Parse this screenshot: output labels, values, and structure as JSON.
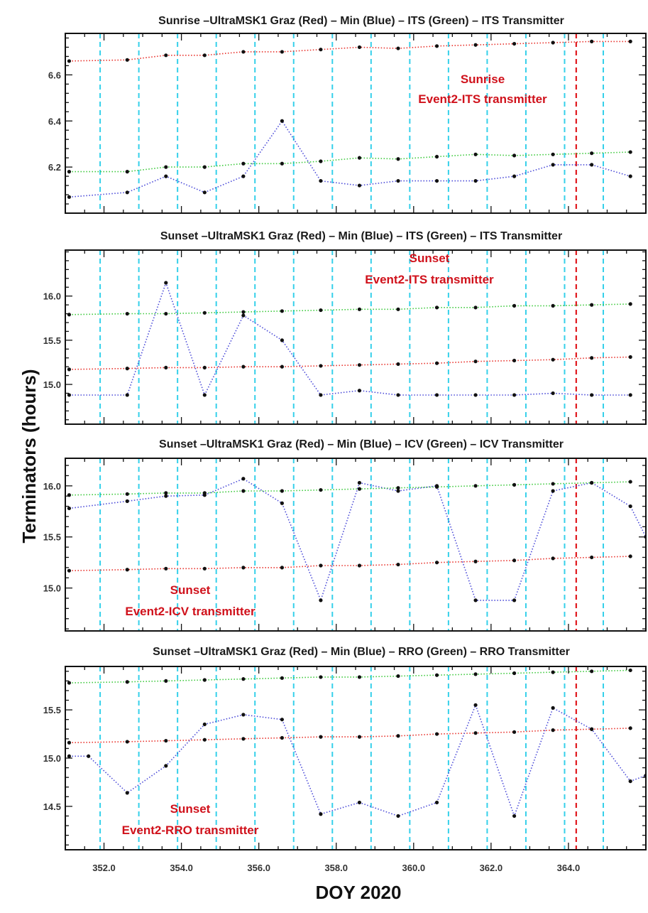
{
  "figure": {
    "ylabel": "Terminators (hours)",
    "xlabel": "DOY 2020"
  },
  "chart_data": [
    {
      "type": "line",
      "title": "Sunrise –UltraMSK1 Graz (Red) – Min (Blue) – ITS (Green) – ITS Transmitter",
      "xlim": [
        351.0,
        366.0
      ],
      "ylim": [
        6.0,
        6.78
      ],
      "xticks": [
        "352.0",
        "354.0",
        "356.0",
        "358.0",
        "360.0",
        "362.0",
        "364.0"
      ],
      "yticks": [
        "6.2",
        "6.4",
        "6.6"
      ],
      "cyan_lines": [
        351.9,
        352.9,
        353.9,
        354.9,
        355.9,
        356.9,
        357.9,
        358.9,
        359.9,
        360.9,
        361.9,
        362.9,
        363.9,
        364.9
      ],
      "red_line": 364.2,
      "annotation": [
        "Sunrise",
        "Event2-ITS transmitter"
      ],
      "annotation_pos": "upper-right",
      "series": [
        {
          "color": "#e8302a",
          "x": [
            351.1,
            352.6,
            353.6,
            354.6,
            355.6,
            356.6,
            357.6,
            358.6,
            359.6,
            360.6,
            361.6,
            362.6,
            363.6,
            364.6,
            365.6
          ],
          "y": [
            6.66,
            6.665,
            6.685,
            6.685,
            6.7,
            6.7,
            6.71,
            6.72,
            6.715,
            6.725,
            6.73,
            6.735,
            6.74,
            6.745,
            6.745
          ]
        },
        {
          "color": "#4a4ad8",
          "x": [
            351.1,
            352.6,
            353.6,
            354.6,
            355.6,
            356.6,
            357.6,
            358.6,
            359.6,
            360.6,
            361.6,
            362.6,
            363.6,
            364.6,
            365.6
          ],
          "y": [
            6.07,
            6.09,
            6.16,
            6.09,
            6.16,
            6.4,
            6.14,
            6.12,
            6.14,
            6.14,
            6.14,
            6.16,
            6.21,
            6.21,
            6.16
          ]
        },
        {
          "color": "#3cc93c",
          "x": [
            351.1,
            352.6,
            353.6,
            354.6,
            355.6,
            356.6,
            357.6,
            358.6,
            359.6,
            360.6,
            361.6,
            362.6,
            363.6,
            364.6,
            365.6
          ],
          "y": [
            6.18,
            6.18,
            6.2,
            6.2,
            6.215,
            6.215,
            6.225,
            6.24,
            6.235,
            6.245,
            6.255,
            6.25,
            6.255,
            6.26,
            6.265
          ]
        }
      ]
    },
    {
      "type": "line",
      "title": "Sunset –UltraMSK1 Graz (Red) – Min (Blue) – ITS (Green) – ITS Transmitter",
      "xlim": [
        351.0,
        366.0
      ],
      "ylim": [
        14.55,
        16.52
      ],
      "xticks": [
        "352.0",
        "354.0",
        "356.0",
        "358.0",
        "360.0",
        "362.0",
        "364.0"
      ],
      "yticks": [
        "15.0",
        "15.5",
        "16.0"
      ],
      "cyan_lines": [
        351.9,
        352.9,
        353.9,
        354.9,
        355.9,
        356.9,
        357.9,
        358.9,
        359.9,
        360.9,
        361.9,
        362.9,
        363.9,
        364.9
      ],
      "red_line": 364.2,
      "annotation": [
        "Sunset",
        "Event2-ITS transmitter"
      ],
      "annotation_pos": "upper-center",
      "series": [
        {
          "color": "#e8302a",
          "x": [
            351.1,
            352.6,
            353.6,
            354.6,
            355.6,
            356.6,
            357.6,
            358.6,
            359.6,
            360.6,
            361.6,
            362.6,
            363.6,
            364.6,
            365.6
          ],
          "y": [
            15.17,
            15.18,
            15.19,
            15.19,
            15.2,
            15.2,
            15.21,
            15.22,
            15.23,
            15.24,
            15.26,
            15.27,
            15.28,
            15.3,
            15.31
          ]
        },
        {
          "color": "#4a4ad8",
          "x": [
            351.1,
            352.6,
            353.6,
            354.6,
            355.6,
            356.6,
            357.6,
            358.6,
            359.6,
            360.6,
            361.6,
            362.6,
            363.6,
            364.6,
            365.6
          ],
          "y": [
            14.88,
            14.88,
            16.15,
            14.88,
            15.78,
            15.5,
            14.88,
            14.93,
            14.88,
            14.88,
            14.88,
            14.88,
            14.9,
            14.88,
            14.88
          ]
        },
        {
          "color": "#3cc93c",
          "x": [
            351.1,
            352.6,
            353.6,
            354.6,
            355.6,
            356.6,
            357.6,
            358.6,
            359.6,
            360.6,
            361.6,
            362.6,
            363.6,
            364.6,
            365.6
          ],
          "y": [
            15.79,
            15.8,
            15.8,
            15.81,
            15.82,
            15.83,
            15.84,
            15.85,
            15.85,
            15.87,
            15.87,
            15.89,
            15.89,
            15.9,
            15.91
          ]
        }
      ]
    },
    {
      "type": "line",
      "title": "Sunset –UltraMSK1 Graz (Red) – Min (Blue) – ICV (Green) – ICV Transmitter",
      "xlim": [
        351.0,
        366.0
      ],
      "ylim": [
        14.58,
        16.27
      ],
      "xticks": [
        "352.0",
        "354.0",
        "356.0",
        "358.0",
        "360.0",
        "362.0",
        "364.0"
      ],
      "yticks": [
        "15.0",
        "15.5",
        "16.0"
      ],
      "cyan_lines": [
        351.9,
        352.9,
        353.9,
        354.9,
        355.9,
        356.9,
        357.9,
        358.9,
        359.9,
        360.9,
        361.9,
        362.9,
        363.9,
        364.9
      ],
      "red_line": 364.2,
      "annotation": [
        "Sunset",
        "Event2-ICV transmitter"
      ],
      "annotation_pos": "lower-left",
      "series": [
        {
          "color": "#e8302a",
          "x": [
            351.1,
            352.6,
            353.6,
            354.6,
            355.6,
            356.6,
            357.6,
            358.6,
            359.6,
            360.6,
            361.6,
            362.6,
            363.6,
            364.6,
            365.6
          ],
          "y": [
            15.17,
            15.18,
            15.19,
            15.19,
            15.2,
            15.2,
            15.22,
            15.22,
            15.23,
            15.25,
            15.26,
            15.27,
            15.29,
            15.3,
            15.31
          ]
        },
        {
          "color": "#4a4ad8",
          "x": [
            351.1,
            352.6,
            353.6,
            354.6,
            355.6,
            356.6,
            357.6,
            358.6,
            359.6,
            360.6,
            361.6,
            362.6,
            363.6,
            364.6,
            365.6,
            366.0
          ],
          "y": [
            15.78,
            15.85,
            15.9,
            15.91,
            16.07,
            15.83,
            14.88,
            16.03,
            15.95,
            16.0,
            14.88,
            14.88,
            15.95,
            16.03,
            15.8,
            15.5
          ]
        },
        {
          "color": "#3cc93c",
          "x": [
            351.1,
            352.6,
            353.6,
            354.6,
            355.6,
            356.6,
            357.6,
            358.6,
            359.6,
            360.6,
            361.6,
            362.6,
            363.6,
            364.6,
            365.6
          ],
          "y": [
            15.91,
            15.92,
            15.93,
            15.93,
            15.95,
            15.95,
            15.96,
            15.97,
            15.98,
            15.99,
            16.0,
            16.01,
            16.02,
            16.03,
            16.04
          ]
        }
      ]
    },
    {
      "type": "line",
      "title": "Sunset –UltraMSK1 Graz (Red) – Min (Blue) – RRO (Green) – RRO Transmitter",
      "xlim": [
        351.0,
        366.0
      ],
      "ylim": [
        14.05,
        15.95
      ],
      "xticks": [
        "352.0",
        "354.0",
        "356.0",
        "358.0",
        "360.0",
        "362.0",
        "364.0"
      ],
      "yticks": [
        "14.5",
        "15.0",
        "15.5"
      ],
      "cyan_lines": [
        351.9,
        352.9,
        353.9,
        354.9,
        355.9,
        356.9,
        357.9,
        358.9,
        359.9,
        360.9,
        361.9,
        362.9,
        363.9,
        364.9
      ],
      "red_line": 364.2,
      "annotation": [
        "Sunset",
        "Event2-RRO transmitter"
      ],
      "annotation_pos": "lower-left",
      "series": [
        {
          "color": "#e8302a",
          "x": [
            351.1,
            352.6,
            353.6,
            354.6,
            355.6,
            356.6,
            357.6,
            358.6,
            359.6,
            360.6,
            361.6,
            362.6,
            363.6,
            364.6,
            365.6
          ],
          "y": [
            15.16,
            15.17,
            15.18,
            15.19,
            15.2,
            15.21,
            15.22,
            15.22,
            15.23,
            15.25,
            15.26,
            15.27,
            15.29,
            15.3,
            15.31
          ]
        },
        {
          "color": "#4a4ad8",
          "x": [
            351.1,
            351.6,
            352.6,
            353.6,
            354.6,
            355.6,
            356.6,
            357.6,
            358.6,
            359.6,
            360.6,
            361.6,
            362.6,
            363.6,
            364.6,
            365.6,
            366.0
          ],
          "y": [
            15.02,
            15.02,
            14.64,
            14.92,
            15.35,
            15.45,
            15.4,
            14.42,
            14.54,
            14.4,
            14.54,
            15.55,
            14.4,
            15.52,
            15.3,
            14.76,
            14.82
          ]
        },
        {
          "color": "#3cc93c",
          "x": [
            351.1,
            352.6,
            353.6,
            354.6,
            355.6,
            356.6,
            357.6,
            358.6,
            359.6,
            360.6,
            361.6,
            362.6,
            363.6,
            364.6,
            365.6
          ],
          "y": [
            15.78,
            15.79,
            15.8,
            15.81,
            15.82,
            15.83,
            15.84,
            15.84,
            15.85,
            15.86,
            15.87,
            15.88,
            15.89,
            15.9,
            15.91
          ]
        }
      ]
    }
  ]
}
